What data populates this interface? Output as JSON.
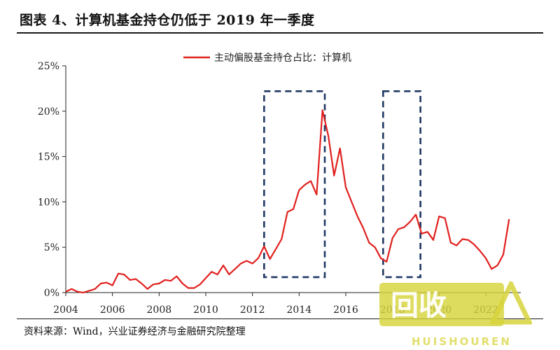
{
  "figure": {
    "title": "图表 4、计算机基金持仓仍低于 2019 年一季度",
    "source": "资料来源：Wind，兴业证券经济与金融研究院整理"
  },
  "watermark": {
    "glyphs": "回收",
    "text": "HUISHOUREN",
    "color": "#d7d43c"
  },
  "chart_data": {
    "type": "line",
    "title": "",
    "xlabel": "",
    "ylabel": "",
    "xlim": [
      2004,
      2023.5
    ],
    "ylim": [
      0,
      25
    ],
    "x_ticks": [
      2004,
      2006,
      2008,
      2010,
      2012,
      2014,
      2016,
      2018,
      2020,
      2022
    ],
    "y_ticks": [
      0,
      5,
      10,
      15,
      20,
      25
    ],
    "y_tick_labels": [
      "0%",
      "5%",
      "10%",
      "15%",
      "20%",
      "25%"
    ],
    "grid": false,
    "legend": "top-center",
    "series": [
      {
        "name": "主动偏股基金持仓占比：计算机",
        "color": "#e0201e",
        "x": [
          2004.0,
          2004.25,
          2004.5,
          2004.75,
          2005.0,
          2005.25,
          2005.5,
          2005.75,
          2006.0,
          2006.25,
          2006.5,
          2006.75,
          2007.0,
          2007.25,
          2007.5,
          2007.75,
          2008.0,
          2008.25,
          2008.5,
          2008.75,
          2009.0,
          2009.25,
          2009.5,
          2009.75,
          2010.0,
          2010.25,
          2010.5,
          2010.75,
          2011.0,
          2011.25,
          2011.5,
          2011.75,
          2012.0,
          2012.25,
          2012.5,
          2012.75,
          2013.0,
          2013.25,
          2013.5,
          2013.75,
          2014.0,
          2014.25,
          2014.5,
          2014.75,
          2015.0,
          2015.25,
          2015.5,
          2015.75,
          2016.0,
          2016.25,
          2016.5,
          2016.75,
          2017.0,
          2017.25,
          2017.5,
          2017.75,
          2018.0,
          2018.25,
          2018.5,
          2018.75,
          2019.0,
          2019.25,
          2019.5,
          2019.75,
          2020.0,
          2020.25,
          2020.5,
          2020.75,
          2021.0,
          2021.25,
          2021.5,
          2021.75,
          2022.0,
          2022.25,
          2022.5,
          2022.75,
          2023.0
        ],
        "values": [
          0.1,
          0.4,
          0.1,
          0.0,
          0.2,
          0.4,
          1.0,
          1.1,
          0.8,
          2.1,
          2.0,
          1.4,
          1.5,
          1.0,
          0.4,
          0.9,
          1.0,
          1.4,
          1.3,
          1.8,
          1.0,
          0.5,
          0.5,
          0.9,
          1.6,
          2.3,
          2.0,
          3.0,
          2.0,
          2.6,
          3.2,
          3.5,
          3.2,
          3.8,
          5.1,
          3.7,
          4.8,
          5.9,
          8.9,
          9.2,
          11.3,
          11.9,
          12.3,
          10.8,
          20.1,
          17.3,
          12.9,
          15.9,
          11.6,
          10.0,
          8.4,
          7.1,
          5.5,
          5.0,
          3.8,
          3.4,
          6.0,
          7.0,
          7.2,
          7.8,
          8.6,
          6.5,
          6.7,
          5.8,
          8.4,
          8.2,
          5.5,
          5.2,
          5.9,
          5.8,
          5.3,
          4.6,
          3.8,
          2.6,
          3.0,
          4.2,
          8.1
        ]
      }
    ],
    "annotations": [
      {
        "type": "dashed-box",
        "x": [
          2012.5,
          2015.1
        ],
        "y": [
          1.7,
          22.2
        ],
        "color": "#1f3864"
      },
      {
        "type": "dashed-box",
        "x": [
          2017.6,
          2019.2
        ],
        "y": [
          1.7,
          22.2
        ],
        "color": "#1f3864"
      }
    ]
  }
}
